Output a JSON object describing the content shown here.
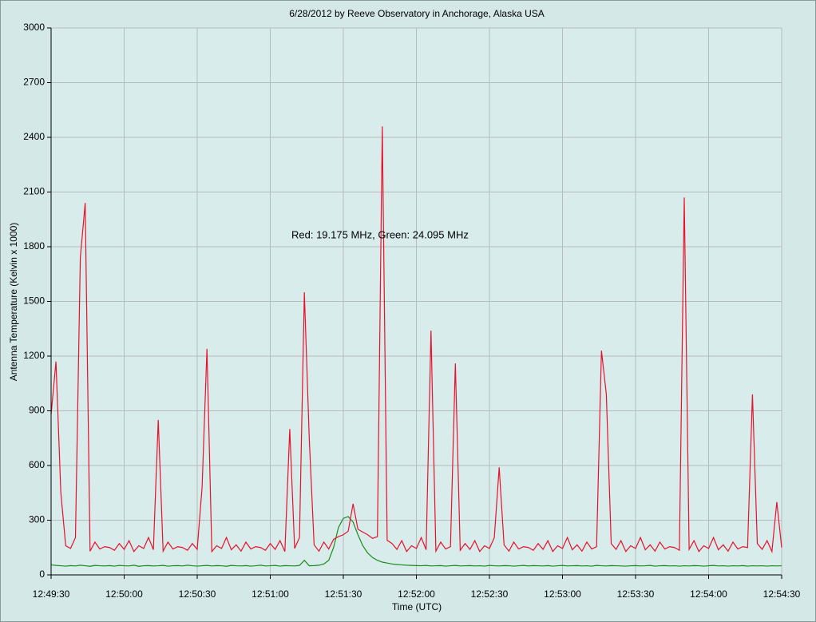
{
  "chart_data": {
    "type": "line",
    "title": "6/28/2012  by  Reeve Observatory  in  Anchorage, Alaska  USA",
    "annotation": "Red: 19.175 MHz, Green: 24.095 MHz",
    "x_label": "Time (UTC)",
    "y_label": "Antenna Temperature (Kelvin x 1000)",
    "grid": true,
    "xlim": [
      "12:49:30",
      "12:54:30"
    ],
    "xticks": [
      "12:49:30",
      "12:50:00",
      "12:50:30",
      "12:51:00",
      "12:51:30",
      "12:52:00",
      "12:52:30",
      "12:53:00",
      "12:53:30",
      "12:54:00",
      "12:54:30"
    ],
    "ylim": [
      0,
      3000
    ],
    "yticks": [
      0,
      300,
      600,
      900,
      1200,
      1500,
      1800,
      2100,
      2400,
      2700,
      3000
    ],
    "x": [
      "12:49:30",
      "12:49:32",
      "12:49:34",
      "12:49:36",
      "12:49:38",
      "12:49:40",
      "12:49:42",
      "12:49:44",
      "12:49:46",
      "12:49:48",
      "12:49:50",
      "12:49:52",
      "12:49:54",
      "12:49:56",
      "12:49:58",
      "12:50:00",
      "12:50:02",
      "12:50:04",
      "12:50:06",
      "12:50:08",
      "12:50:10",
      "12:50:12",
      "12:50:14",
      "12:50:16",
      "12:50:18",
      "12:50:20",
      "12:50:22",
      "12:50:24",
      "12:50:26",
      "12:50:28",
      "12:50:30",
      "12:50:32",
      "12:50:34",
      "12:50:36",
      "12:50:38",
      "12:50:40",
      "12:50:42",
      "12:50:44",
      "12:50:46",
      "12:50:48",
      "12:50:50",
      "12:50:52",
      "12:50:54",
      "12:50:56",
      "12:50:58",
      "12:51:00",
      "12:51:02",
      "12:51:04",
      "12:51:06",
      "12:51:08",
      "12:51:10",
      "12:51:12",
      "12:51:14",
      "12:51:16",
      "12:51:18",
      "12:51:20",
      "12:51:22",
      "12:51:24",
      "12:51:26",
      "12:51:28",
      "12:51:30",
      "12:51:32",
      "12:51:34",
      "12:51:36",
      "12:51:38",
      "12:51:40",
      "12:51:42",
      "12:51:44",
      "12:51:46",
      "12:51:48",
      "12:51:50",
      "12:51:52",
      "12:51:54",
      "12:51:56",
      "12:51:58",
      "12:52:00",
      "12:52:02",
      "12:52:04",
      "12:52:06",
      "12:52:08",
      "12:52:10",
      "12:52:12",
      "12:52:14",
      "12:52:16",
      "12:52:18",
      "12:52:20",
      "12:52:22",
      "12:52:24",
      "12:52:26",
      "12:52:28",
      "12:52:30",
      "12:52:32",
      "12:52:34",
      "12:52:36",
      "12:52:38",
      "12:52:40",
      "12:52:42",
      "12:52:44",
      "12:52:46",
      "12:52:48",
      "12:52:50",
      "12:52:52",
      "12:52:54",
      "12:52:56",
      "12:52:58",
      "12:53:00",
      "12:53:02",
      "12:53:04",
      "12:53:06",
      "12:53:08",
      "12:53:10",
      "12:53:12",
      "12:53:14",
      "12:53:16",
      "12:53:18",
      "12:53:20",
      "12:53:22",
      "12:53:24",
      "12:53:26",
      "12:53:28",
      "12:53:30",
      "12:53:32",
      "12:53:34",
      "12:53:36",
      "12:53:38",
      "12:53:40",
      "12:53:42",
      "12:53:44",
      "12:53:46",
      "12:53:48",
      "12:53:50",
      "12:53:52",
      "12:53:54",
      "12:53:56",
      "12:53:58",
      "12:54:00",
      "12:54:02",
      "12:54:04",
      "12:54:06",
      "12:54:08",
      "12:54:10",
      "12:54:12",
      "12:54:14",
      "12:54:16",
      "12:54:18",
      "12:54:20",
      "12:54:22",
      "12:54:24",
      "12:54:26",
      "12:54:28",
      "12:54:30"
    ],
    "series": [
      {
        "color": "#e8102a",
        "values": [
          880,
          1170,
          450,
          160,
          145,
          205,
          1740,
          2040,
          130,
          180,
          142,
          155,
          150,
          135,
          172,
          140,
          188,
          128,
          160,
          145,
          205,
          138,
          850,
          130,
          180,
          142,
          155,
          150,
          135,
          172,
          140,
          480,
          1240,
          128,
          160,
          145,
          205,
          138,
          165,
          130,
          180,
          142,
          155,
          150,
          135,
          172,
          140,
          188,
          128,
          800,
          145,
          205,
          1550,
          750,
          165,
          130,
          180,
          142,
          195,
          210,
          220,
          240,
          390,
          250,
          235,
          220,
          200,
          210,
          2460,
          190,
          172,
          140,
          188,
          128,
          160,
          145,
          205,
          138,
          1340,
          130,
          180,
          142,
          155,
          1160,
          135,
          172,
          140,
          188,
          128,
          160,
          145,
          205,
          590,
          165,
          130,
          180,
          142,
          155,
          150,
          135,
          172,
          140,
          188,
          128,
          160,
          145,
          205,
          138,
          165,
          130,
          180,
          142,
          155,
          1230,
          990,
          172,
          140,
          188,
          128,
          160,
          145,
          205,
          138,
          165,
          130,
          180,
          142,
          155,
          150,
          135,
          2070,
          140,
          188,
          128,
          160,
          145,
          205,
          138,
          165,
          130,
          180,
          142,
          155,
          150,
          990,
          172,
          140,
          188,
          128,
          400,
          150
        ]
      },
      {
        "color": "#1a8a1a",
        "values": [
          55,
          52,
          50,
          48,
          51,
          49,
          53,
          50,
          47,
          52,
          50,
          49,
          51,
          48,
          52,
          50,
          49,
          53,
          47,
          50,
          51,
          49,
          50,
          52,
          48,
          50,
          51,
          49,
          53,
          50,
          48,
          50,
          52,
          49,
          51,
          50,
          47,
          52,
          50,
          49,
          51,
          48,
          50,
          53,
          49,
          50,
          52,
          48,
          51,
          50,
          49,
          52,
          80,
          50,
          51,
          53,
          60,
          80,
          150,
          260,
          310,
          320,
          290,
          220,
          160,
          120,
          95,
          80,
          70,
          65,
          60,
          57,
          55,
          53,
          52,
          51,
          50,
          52,
          49,
          50,
          51,
          48,
          50,
          52,
          49,
          50,
          51,
          49,
          50,
          48,
          52,
          50,
          49,
          51,
          50,
          48,
          50,
          52,
          49,
          51,
          50,
          49,
          51,
          48,
          50,
          52,
          49,
          50,
          51,
          49,
          50,
          48,
          52,
          50,
          49,
          51,
          50,
          49,
          48,
          50,
          51,
          49,
          50,
          52,
          48,
          50,
          51,
          49,
          50,
          48,
          50,
          49,
          51,
          50,
          48,
          50,
          52,
          49,
          50,
          48,
          50,
          49,
          51,
          48,
          50,
          49,
          50,
          48,
          50,
          49,
          50
        ]
      }
    ]
  }
}
